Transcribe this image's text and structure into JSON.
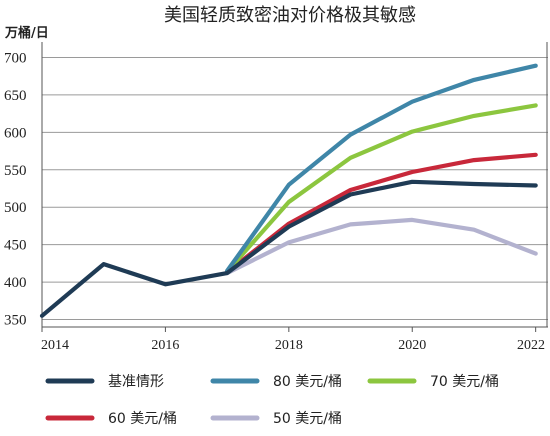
{
  "chart_data": {
    "type": "line",
    "title": "美国轻质致密油对价格极其敏感",
    "ylabel": "万桶/日",
    "xlabel": "",
    "ylim": [
      340,
      710
    ],
    "xlim": [
      2014,
      2022.2
    ],
    "yticks": [
      350,
      400,
      450,
      500,
      550,
      600,
      650,
      700
    ],
    "xticks": [
      2014,
      2016,
      2018,
      2020,
      2022
    ],
    "grid": "horizontal",
    "legend_placement": "bottom",
    "series": [
      {
        "name": "基准情形",
        "color": "#1f3b55",
        "points": [
          [
            2014,
            355
          ],
          [
            2015,
            424
          ],
          [
            2016,
            397
          ],
          [
            2017,
            412
          ],
          [
            2018,
            474
          ],
          [
            2019,
            517
          ],
          [
            2020,
            534
          ],
          [
            2021,
            531
          ],
          [
            2022,
            529
          ]
        ]
      },
      {
        "name": "80 美元/桶",
        "color": "#3f86a8",
        "points": [
          [
            2017,
            415
          ],
          [
            2018,
            530
          ],
          [
            2019,
            597
          ],
          [
            2020,
            641
          ],
          [
            2021,
            670
          ],
          [
            2022,
            689
          ]
        ]
      },
      {
        "name": "70 美元/桶",
        "color": "#8cc63f",
        "points": [
          [
            2017,
            414
          ],
          [
            2018,
            507
          ],
          [
            2019,
            566
          ],
          [
            2020,
            601
          ],
          [
            2021,
            622
          ],
          [
            2022,
            636
          ]
        ]
      },
      {
        "name": "60 美元/桶",
        "color": "#c8283a",
        "points": [
          [
            2017,
            413
          ],
          [
            2018,
            478
          ],
          [
            2019,
            523
          ],
          [
            2020,
            547
          ],
          [
            2021,
            563
          ],
          [
            2022,
            570
          ]
        ]
      },
      {
        "name": "50 美元/桶",
        "color": "#b3b2cf",
        "points": [
          [
            2017,
            412
          ],
          [
            2018,
            453
          ],
          [
            2019,
            477
          ],
          [
            2020,
            483
          ],
          [
            2021,
            470
          ],
          [
            2022,
            438
          ]
        ]
      }
    ]
  }
}
